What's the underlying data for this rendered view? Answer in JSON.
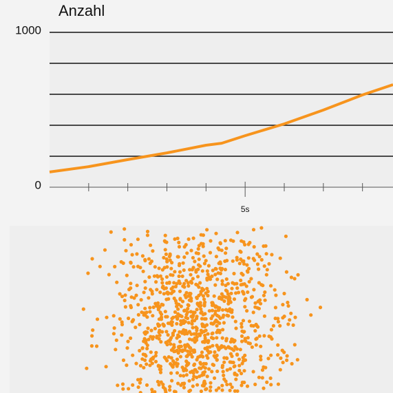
{
  "chart_data": {
    "type": "line",
    "title": "Anzahl",
    "x": [
      0,
      1,
      2,
      3,
      4,
      4.4,
      5,
      6,
      7,
      8,
      8.78
    ],
    "series": [
      {
        "color": "#f7941d",
        "values": [
          98,
          133,
          178,
          222,
          271,
          284,
          333,
          409,
          498,
          596,
          662
        ]
      }
    ],
    "xlim": [
      0,
      8.78
    ],
    "xticks": [
      {
        "value": 5,
        "label": "5s"
      }
    ],
    "xminor": [
      1,
      2,
      3,
      4,
      6,
      7,
      8
    ],
    "ylim": [
      0,
      1000
    ],
    "yticks": [
      0,
      1000
    ],
    "ygrid": [
      200,
      400,
      600,
      800,
      1000
    ],
    "grid": true
  }
}
